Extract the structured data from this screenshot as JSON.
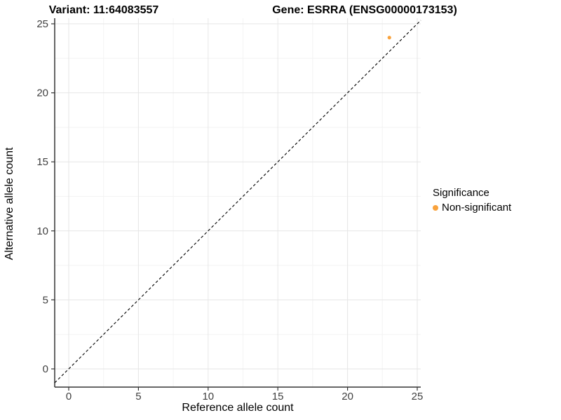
{
  "titles": {
    "left": "Variant: 11:64083557",
    "right": "Gene: ESRRA (ENSG00000173153)"
  },
  "chart_data": {
    "type": "scatter",
    "title_left": "Variant: 11:64083557",
    "title_right": "Gene: ESRRA (ENSG00000173153)",
    "xlabel": "Reference allele count",
    "ylabel": "Alternative allele count",
    "xlim": [
      -1,
      25.3
    ],
    "ylim": [
      -1.3,
      25.4
    ],
    "xticks": [
      0,
      5,
      10,
      15,
      20,
      25
    ],
    "yticks": [
      0,
      5,
      10,
      15,
      20,
      25
    ],
    "grid": {
      "major": true,
      "minor": true
    },
    "identity_line": {
      "show": true,
      "style": "dashed",
      "color": "#000000"
    },
    "series": [
      {
        "name": "Non-significant",
        "color": "#F9A23C",
        "points": [
          {
            "x": 23,
            "y": 24
          }
        ]
      }
    ],
    "legend": {
      "title": "Significance",
      "position": "right",
      "items": [
        {
          "label": "Non-significant",
          "color": "#F9A23C"
        }
      ]
    },
    "colors": {
      "axis_line": "#333333",
      "tick_label": "#404040",
      "grid_major": "#E6E6E6",
      "grid_minor": "#F3F3F3",
      "background": "#FFFFFF"
    }
  }
}
